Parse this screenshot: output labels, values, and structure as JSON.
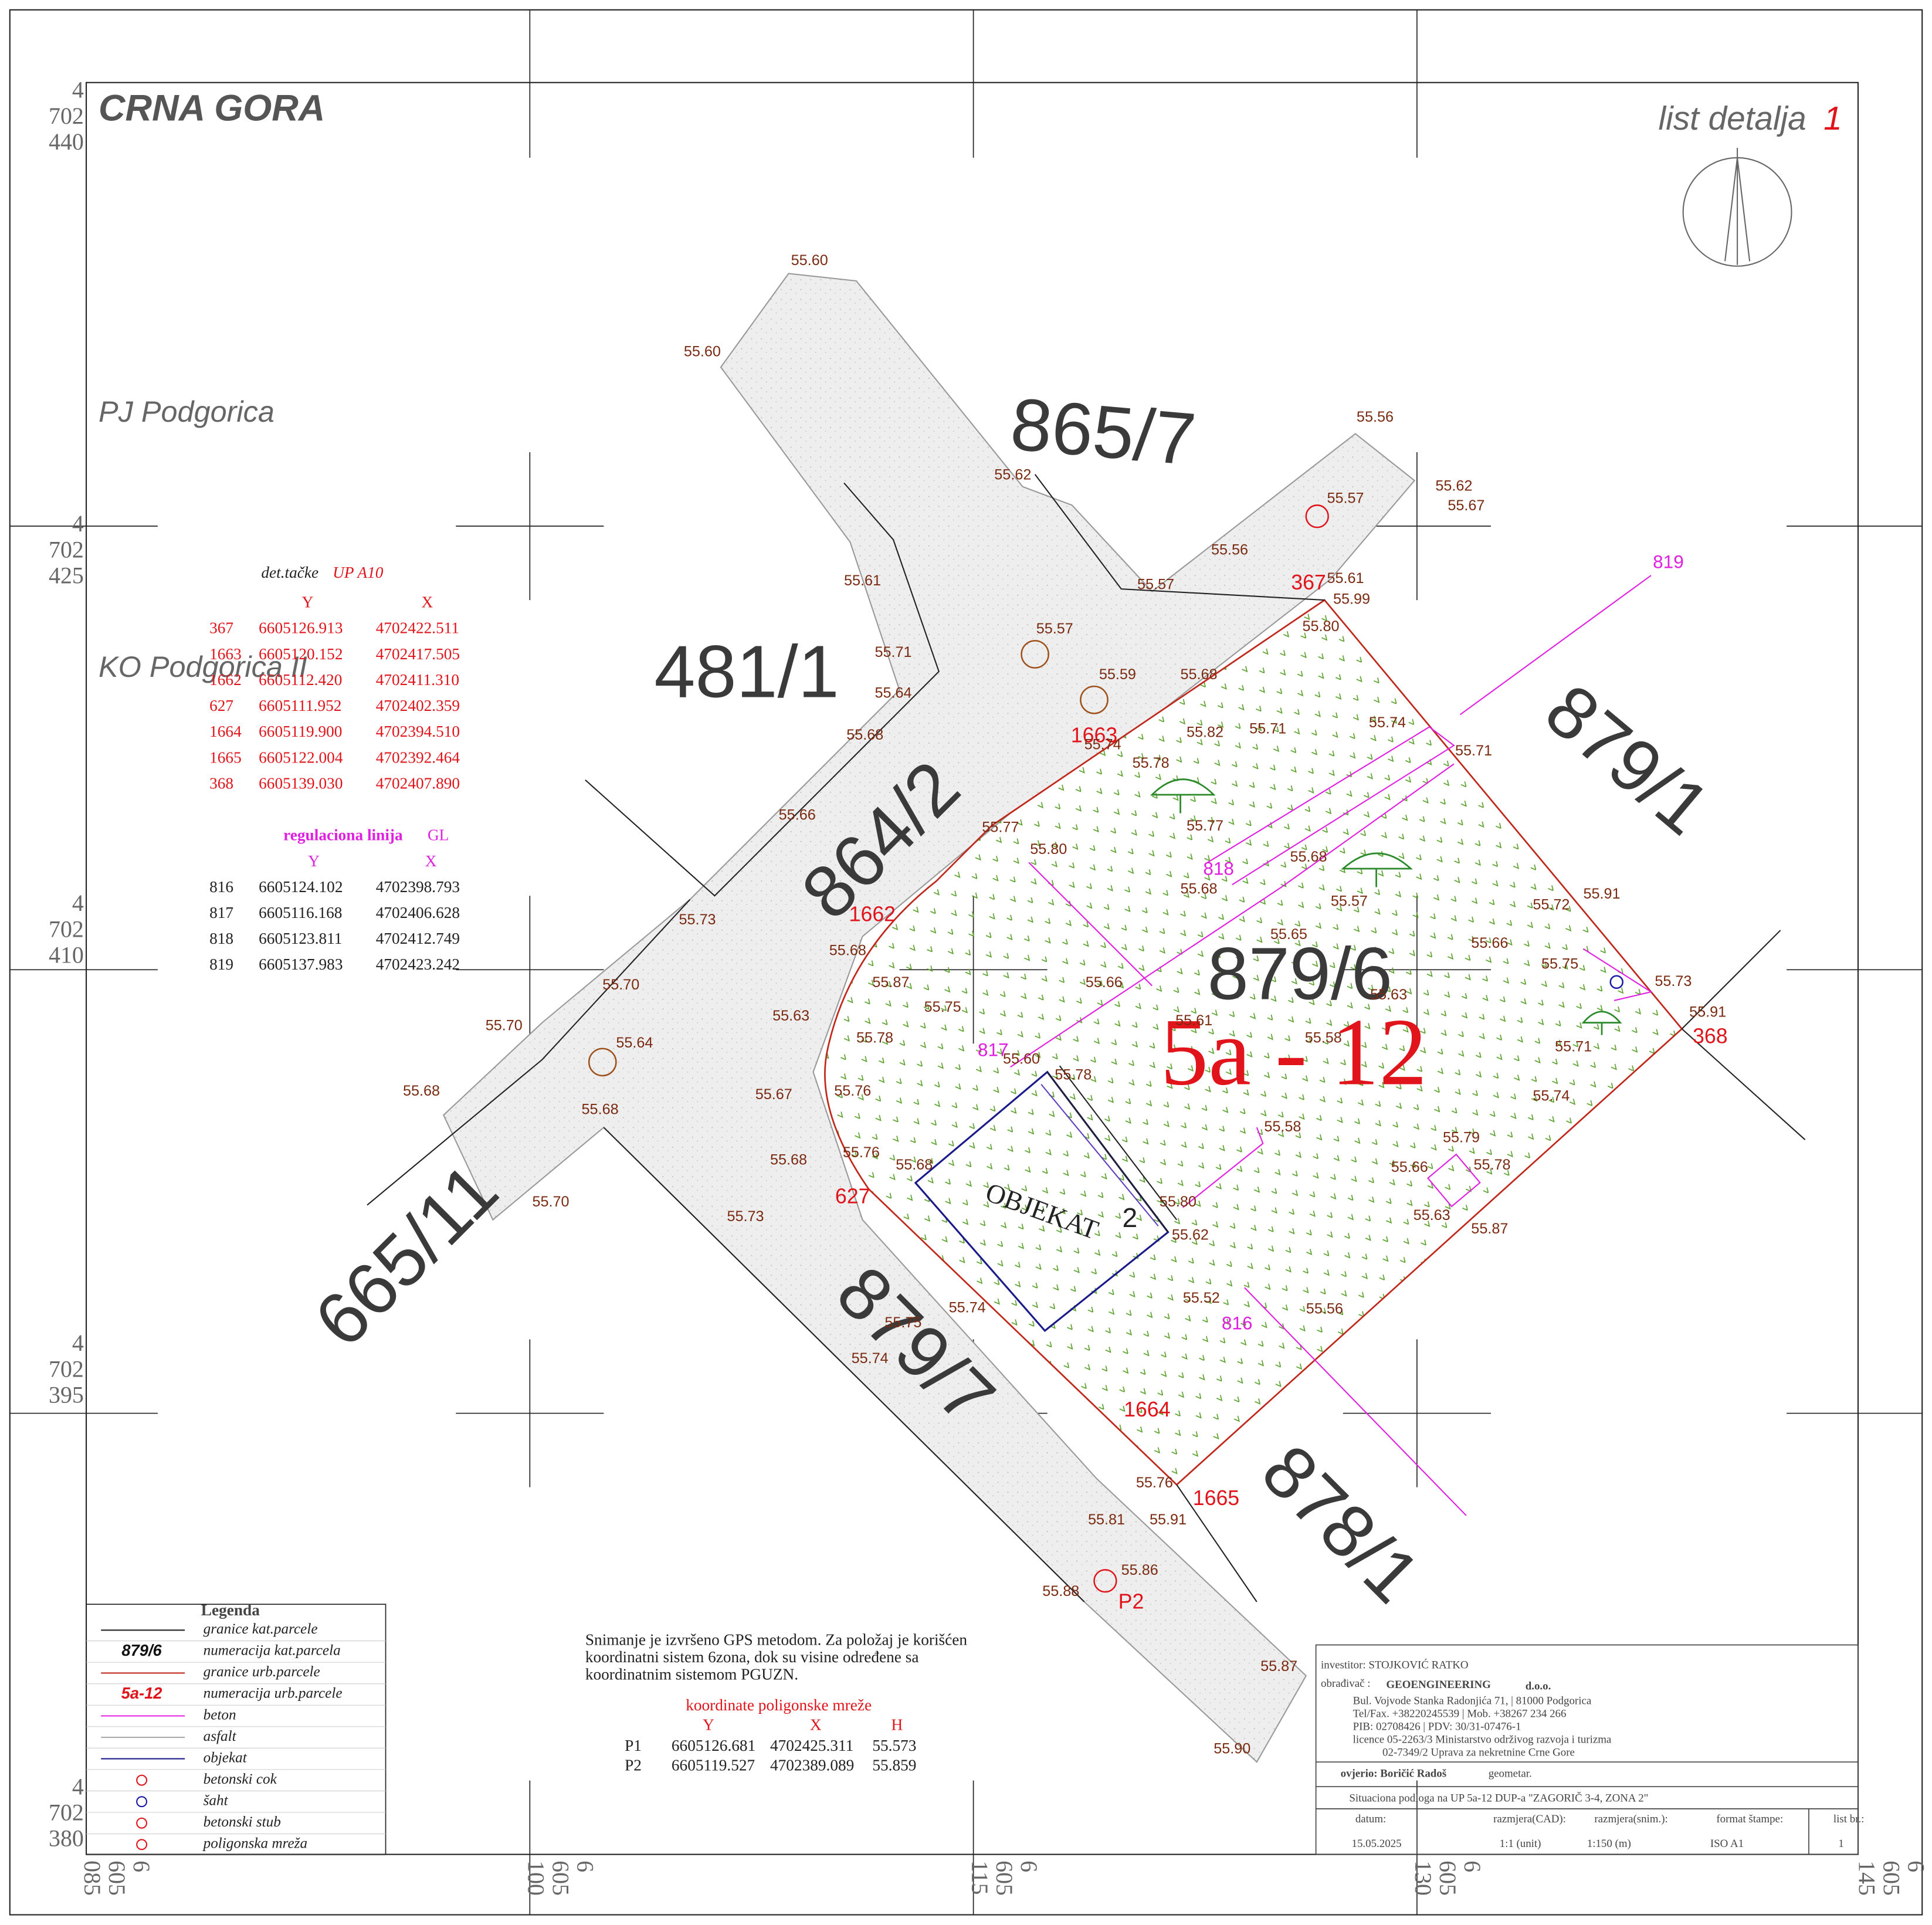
{
  "header": {
    "country": "CRNA GORA",
    "sheet_label": "list detalja",
    "sheet_number": "1",
    "pj": "PJ  Podgorica",
    "ko": "KO Podgorica II"
  },
  "grid": {
    "left": [
      [
        "4",
        "702",
        "440"
      ],
      [
        "4",
        "702",
        "425"
      ],
      [
        "4",
        "702",
        "410"
      ],
      [
        "4",
        "702",
        "395"
      ],
      [
        "4",
        "702",
        "380"
      ]
    ],
    "bottom": [
      [
        "6",
        "605",
        "085"
      ],
      [
        "6",
        "605",
        "100"
      ],
      [
        "6",
        "605",
        "115"
      ],
      [
        "6",
        "605",
        "130"
      ],
      [
        "6",
        "605",
        "145"
      ]
    ]
  },
  "parcels": [
    "865/7",
    "481/1",
    "864/2",
    "879/1",
    "879/6",
    "665/11",
    "879/7",
    "878/1"
  ],
  "urban_parcel": "5a - 12",
  "building": {
    "label": "OBJEKAT",
    "number": "2"
  },
  "points": [
    "367",
    "1663",
    "1662",
    "627",
    "368",
    "1664",
    "1665",
    "P2"
  ],
  "regulation_points": [
    "819",
    "818",
    "817",
    "816"
  ],
  "elevations": [
    "55.60",
    "55.60",
    "55.56",
    "55.62",
    "55.57",
    "55.62",
    "55.67",
    "55.56",
    "55.57",
    "55.61",
    "55.99",
    "55.61",
    "55.80",
    "55.57",
    "55.71",
    "55.59",
    "55.68",
    "55.64",
    "55.74",
    "55.71",
    "55.82",
    "55.68",
    "55.74",
    "55.71",
    "55.78",
    "55.66",
    "55.77",
    "55.77",
    "55.80",
    "55.68",
    "55.68",
    "55.57",
    "55.91",
    "55.72",
    "55.73",
    "55.68",
    "55.65",
    "55.66",
    "55.70",
    "55.87",
    "55.66",
    "55.75",
    "55.73",
    "55.63",
    "55.75",
    "55.70",
    "55.63",
    "55.61",
    "55.91",
    "55.64",
    "55.78",
    "55.58",
    "55.71",
    "55.60",
    "55.78",
    "55.68",
    "55.67",
    "55.76",
    "55.74",
    "55.68",
    "55.58",
    "55.79",
    "55.68",
    "55.76",
    "55.68",
    "55.66",
    "55.78",
    "55.70",
    "55.80",
    "55.73",
    "55.63",
    "55.62",
    "55.87",
    "55.52",
    "55.74",
    "55.56",
    "55.75",
    "55.74",
    "55.76",
    "55.81",
    "55.91",
    "55.86",
    "55.88",
    "55.87",
    "55.90"
  ],
  "detail_table": {
    "title": "det.tačke",
    "plan": "UP  A10",
    "columns": [
      "Y",
      "X"
    ],
    "rows": [
      [
        "367",
        "6605126.913",
        "4702422.511"
      ],
      [
        "1663",
        "6605120.152",
        "4702417.505"
      ],
      [
        "1662",
        "6605112.420",
        "4702411.310"
      ],
      [
        "627",
        "6605111.952",
        "4702402.359"
      ],
      [
        "1664",
        "6605119.900",
        "4702394.510"
      ],
      [
        "1665",
        "6605122.004",
        "4702392.464"
      ],
      [
        "368",
        "6605139.030",
        "4702407.890"
      ]
    ]
  },
  "regulation_table": {
    "title": "regulaciona linija",
    "line": "GL",
    "columns": [
      "Y",
      "X"
    ],
    "rows": [
      [
        "816",
        "6605124.102",
        "4702398.793"
      ],
      [
        "817",
        "6605116.168",
        "4702406.628"
      ],
      [
        "818",
        "6605123.811",
        "4702412.749"
      ],
      [
        "819",
        "6605137.983",
        "4702423.242"
      ]
    ]
  },
  "legend": {
    "title": "Legenda",
    "items": [
      {
        "label": "granice kat.parcele"
      },
      {
        "sample": "879/6",
        "label": "numeracija kat.parcela"
      },
      {
        "label": "granice urb.parcele"
      },
      {
        "sample": "5a-12",
        "label": "numeracija urb.parcele"
      },
      {
        "label": "beton"
      },
      {
        "label": "asfalt"
      },
      {
        "label": "objekat"
      },
      {
        "label": "betonski cok"
      },
      {
        "label": "šaht"
      },
      {
        "label": "betonski stub"
      },
      {
        "label": "poligonska mreža"
      }
    ]
  },
  "survey_note": [
    "Snimanje je izvršeno GPS metodom. Za položaj je korišćen",
    "koordinatni sistem  6zona, dok su visine određene sa",
    "koordinatnim sistemom PGUZN."
  ],
  "polygon_network": {
    "title": "koordinate poligonske mreže",
    "columns": [
      "Y",
      "X",
      "H"
    ],
    "rows": [
      [
        "P1",
        "6605126.681",
        "4702425.311",
        "55.573"
      ],
      [
        "P2",
        "6605119.527",
        "4702389.089",
        "55.859"
      ]
    ]
  },
  "title_block": {
    "investor": "investitor: STOJKOVIĆ  RATKO",
    "maker_label": "obrađivač :",
    "company": "GEOENGINEERING",
    "company_suffix": "d.o.o.",
    "address": [
      "Bul. Vojvode Stanka Radonjića 71, | 81000 Podgorica",
      "Tel/Fax. +38220245539  |  Mob. +38267 234 266",
      "PIB: 02708426  |  PDV: 30/31-07476-1",
      "licence 05-2263/3 Ministarstvo održivog razvoja i turizma",
      "02-7349/2 Uprava za nekretnine Crne Gore"
    ],
    "verified": "ovjerio: Boričić Radoš",
    "verified_title": "geometar.",
    "subject": "Situaciona podloga na  UP 5a-12 DUP-a \"ZAGORIČ 3-4, ZONA 2\"",
    "fields": [
      {
        "label": "datum:",
        "value": "15.05.2025"
      },
      {
        "label": "razmjera(CAD):",
        "value": "1:1 (unit)"
      },
      {
        "label": "razmjera(snim.):",
        "value": "1:150 (m)"
      },
      {
        "label": "format štampe:",
        "value": "ISO A1"
      },
      {
        "label": "list br.:",
        "value": "1"
      }
    ]
  }
}
